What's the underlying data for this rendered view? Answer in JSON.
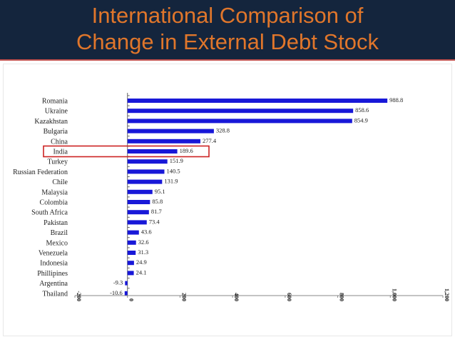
{
  "slide": {
    "title_line1": "International Comparison of",
    "title_line2": "Change in External Debt Stock"
  },
  "colors": {
    "title_background": "#14253d",
    "title_text": "#e0762b",
    "bar": "#1818d8",
    "highlight_box": "#cc2222"
  },
  "chart_data": {
    "type": "bar",
    "orientation": "horizontal",
    "categories": [
      "Romania",
      "Ukraine",
      "Kazakhstan",
      "Bulgaria",
      "China",
      "India",
      "Turkey",
      "Russian Federation",
      "Chile",
      "Malaysia",
      "Colombia",
      "South Africa",
      "Pakistan",
      "Brazil",
      "Mexico",
      "Venezuela",
      "Indonesia",
      "Phillipines",
      "Argentina",
      "Thailand"
    ],
    "values": [
      988.8,
      858.6,
      854.9,
      328.8,
      277.4,
      189.6,
      151.9,
      140.5,
      131.9,
      95.1,
      85.8,
      81.7,
      73.4,
      43.6,
      32.6,
      31.3,
      24.9,
      24.1,
      -9.3,
      -10.6
    ],
    "value_labels": [
      "988.8",
      "858.6",
      "854.9",
      "328.8",
      "277.4",
      "189.6",
      "151.9",
      "140.5",
      "131.9",
      "95.1",
      "85.8",
      "81.7",
      "73.4",
      "43.6",
      "32.6",
      "31.3",
      "24.9",
      "24.1",
      "-9.3",
      "-10.6"
    ],
    "xlim": [
      -200,
      1200
    ],
    "x_ticks": [
      -200,
      0,
      200,
      400,
      600,
      800,
      1000,
      1200
    ],
    "x_tick_labels": [
      "-200",
      "0",
      "200",
      "400",
      "600",
      "800",
      "1,000",
      "1,200"
    ],
    "highlighted_category": "India",
    "title": "",
    "xlabel": "",
    "ylabel": "",
    "grid": false,
    "legend": "none"
  }
}
